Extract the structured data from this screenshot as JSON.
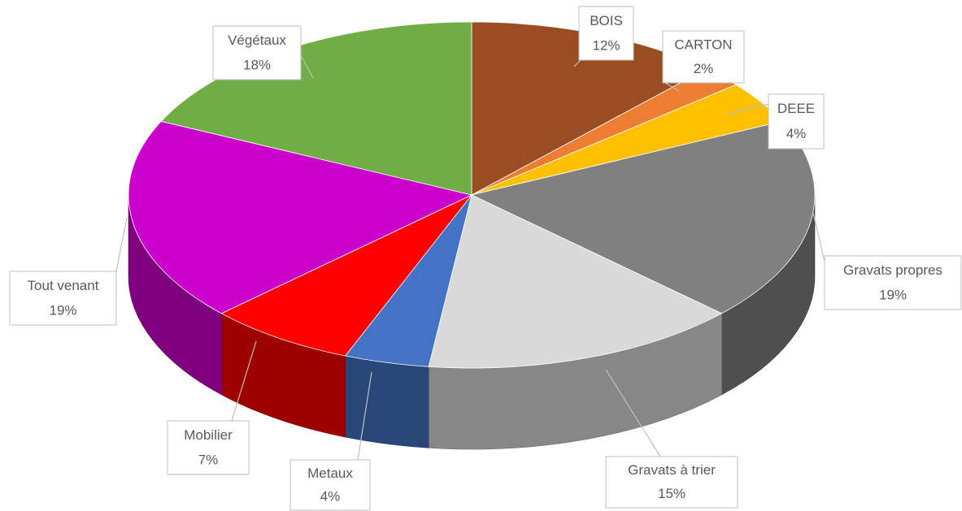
{
  "chart_data": {
    "type": "pie3d",
    "categories": [
      "BOIS",
      "CARTON",
      "DEEE",
      "Gravats propres",
      "Gravats à trier",
      "Metaux",
      "Mobilier",
      "Tout venant",
      "Végétaux"
    ],
    "values": [
      12,
      2,
      4,
      19,
      15,
      4,
      7,
      19,
      18
    ],
    "value_labels": [
      "12%",
      "2%",
      "4%",
      "19%",
      "15%",
      "4%",
      "7%",
      "19%",
      "18%"
    ],
    "colors": [
      "#9a4c22",
      "#ed7d31",
      "#ffc000",
      "#808080",
      "#d9d9d9",
      "#4472c4",
      "#ff0000",
      "#cc00cc",
      "#70ad47"
    ]
  }
}
